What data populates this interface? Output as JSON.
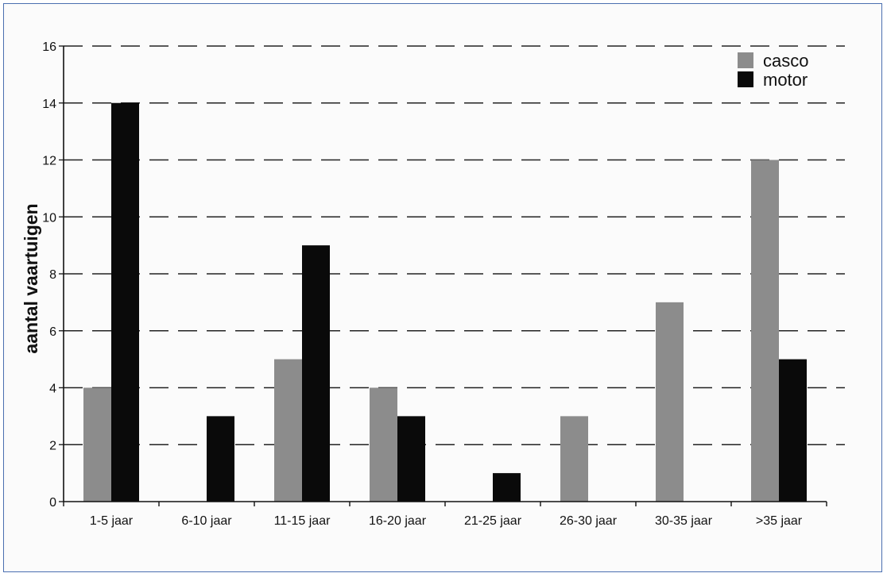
{
  "chart_data": {
    "type": "bar",
    "title": "",
    "xlabel": "",
    "ylabel": "aantal vaartuigen",
    "ylim": [
      0,
      16
    ],
    "yticks": [
      0,
      2,
      4,
      6,
      8,
      10,
      12,
      14,
      16
    ],
    "grid": "horizontal-dashed",
    "legend_position": "top-right",
    "categories": [
      "1-5 jaar",
      "6-10 jaar",
      "11-15 jaar",
      "16-20 jaar",
      "21-25 jaar",
      "26-30 jaar",
      "30-35 jaar",
      ">35 jaar"
    ],
    "series": [
      {
        "name": "casco",
        "color": "#8c8c8c",
        "values": [
          4,
          0,
          5,
          4,
          0,
          3,
          7,
          12
        ]
      },
      {
        "name": "motor",
        "color": "#0a0a0a",
        "values": [
          14,
          3,
          9,
          3,
          1,
          0,
          0,
          5
        ]
      }
    ]
  }
}
